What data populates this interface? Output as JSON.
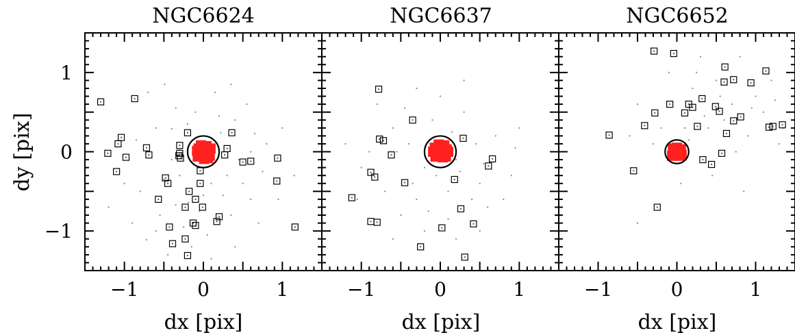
{
  "chart_data": [
    {
      "type": "scatter",
      "title": "NGC6624",
      "xlabel": "dx [pix]",
      "ylabel": "dy [pix]",
      "xlim": [
        -1.5,
        1.5
      ],
      "ylim": [
        -1.5,
        1.5
      ],
      "xticks": [
        "−1",
        "0",
        "1"
      ],
      "yticks": [
        "−1",
        "0",
        "1"
      ],
      "circle_radius": 0.2,
      "selected_points": [
        [
          0.03,
          0.0
        ],
        [
          -0.02,
          0.03
        ],
        [
          0.05,
          -0.04
        ],
        [
          -0.04,
          -0.02
        ],
        [
          0.0,
          0.05
        ],
        [
          0.07,
          0.02
        ],
        [
          -0.06,
          0.04
        ],
        [
          0.02,
          -0.07
        ],
        [
          0.08,
          -0.05
        ],
        [
          -0.07,
          -0.06
        ],
        [
          0.04,
          0.07
        ],
        [
          -0.03,
          0.08
        ],
        [
          0.09,
          0.04
        ],
        [
          -0.08,
          0.01
        ],
        [
          0.01,
          -0.09
        ],
        [
          0.06,
          -0.08
        ]
      ],
      "rejected_points": [
        [
          -1.3,
          0.63
        ],
        [
          -0.87,
          0.67
        ],
        [
          -1.04,
          0.18
        ],
        [
          -1.08,
          0.1
        ],
        [
          -0.98,
          -0.07
        ],
        [
          -1.21,
          -0.02
        ],
        [
          -1.1,
          -0.25
        ],
        [
          -0.72,
          0.05
        ],
        [
          -0.69,
          -0.04
        ],
        [
          -0.48,
          -0.33
        ],
        [
          -0.45,
          -0.4
        ],
        [
          -0.57,
          -0.6
        ],
        [
          -0.3,
          0.08
        ],
        [
          -0.31,
          -0.05
        ],
        [
          -0.29,
          -0.08
        ],
        [
          -0.2,
          0.24
        ],
        [
          -0.3,
          -0.02
        ],
        [
          -0.18,
          -0.5
        ],
        [
          -0.04,
          -0.4
        ],
        [
          -0.04,
          -0.24
        ],
        [
          -0.23,
          -0.7
        ],
        [
          -0.13,
          -0.9
        ],
        [
          -0.1,
          -0.93
        ],
        [
          0.17,
          -0.88
        ],
        [
          0.2,
          -0.82
        ],
        [
          -0.01,
          -0.7
        ],
        [
          -0.1,
          -0.6
        ],
        [
          -0.43,
          -0.95
        ],
        [
          -0.23,
          -1.1
        ],
        [
          -0.39,
          -1.16
        ],
        [
          -0.2,
          -1.31
        ],
        [
          0.3,
          0.04
        ],
        [
          0.27,
          -0.04
        ],
        [
          0.36,
          0.24
        ],
        [
          0.5,
          -0.13
        ],
        [
          0.6,
          -0.12
        ],
        [
          0.94,
          -0.08
        ],
        [
          0.93,
          -0.37
        ],
        [
          1.16,
          -0.95
        ]
      ],
      "noise_points": [
        [
          -0.4,
          0.29
        ],
        [
          0.35,
          0.85
        ],
        [
          0.65,
          0.23
        ],
        [
          -0.49,
          0.85
        ],
        [
          -0.19,
          -0.64
        ],
        [
          0.22,
          0.24
        ],
        [
          -0.72,
          -1.11
        ],
        [
          -0.3,
          0.02
        ],
        [
          0.45,
          -0.1
        ],
        [
          -0.35,
          -0.67
        ],
        [
          0.1,
          -0.4
        ],
        [
          -0.25,
          -0.95
        ],
        [
          0.05,
          -1.05
        ],
        [
          -0.5,
          -0.35
        ],
        [
          0.6,
          -0.6
        ],
        [
          0.3,
          -0.3
        ],
        [
          -0.1,
          0.5
        ],
        [
          0.2,
          0.45
        ],
        [
          -0.6,
          0.3
        ],
        [
          0.8,
          0.1
        ],
        [
          -0.8,
          -0.5
        ],
        [
          0.7,
          -0.9
        ],
        [
          -0.15,
          -1.2
        ],
        [
          0.4,
          -1.2
        ],
        [
          -0.9,
          -0.9
        ],
        [
          1.0,
          0.3
        ],
        [
          -0.35,
          0.55
        ],
        [
          0.55,
          0.6
        ],
        [
          -0.7,
          0.75
        ],
        [
          0.15,
          0.75
        ],
        [
          -1.0,
          -0.4
        ],
        [
          0.95,
          -0.6
        ],
        [
          -0.55,
          -0.8
        ],
        [
          0.25,
          -0.55
        ],
        [
          -0.05,
          -0.75
        ],
        [
          0.5,
          -0.4
        ],
        [
          -0.3,
          -0.3
        ],
        [
          0.35,
          -0.8
        ],
        [
          -0.45,
          -1.3
        ],
        [
          0.1,
          -1.35
        ],
        [
          0.75,
          -0.25
        ],
        [
          -0.85,
          0.15
        ],
        [
          -0.2,
          0.35
        ],
        [
          0.4,
          0.4
        ],
        [
          -1.2,
          -0.7
        ],
        [
          1.15,
          -0.3
        ],
        [
          -0.6,
          -1.0
        ],
        [
          0.6,
          0.0
        ],
        [
          -0.4,
          -0.1
        ],
        [
          0.0,
          -0.55
        ]
      ]
    },
    {
      "type": "scatter",
      "title": "NGC6637",
      "xlabel": "dx [pix]",
      "ylabel": "",
      "xlim": [
        -1.5,
        1.5
      ],
      "ylim": [
        -1.5,
        1.5
      ],
      "xticks": [
        "−1",
        "0",
        "1"
      ],
      "yticks": [],
      "circle_radius": 0.2,
      "selected_points": [
        [
          0.02,
          0.01
        ],
        [
          -0.03,
          0.04
        ],
        [
          0.06,
          -0.03
        ],
        [
          -0.05,
          -0.03
        ],
        [
          0.01,
          0.06
        ],
        [
          0.08,
          0.03
        ],
        [
          -0.07,
          0.05
        ],
        [
          0.03,
          -0.07
        ],
        [
          0.07,
          -0.06
        ],
        [
          -0.06,
          -0.06
        ],
        [
          0.05,
          0.08
        ],
        [
          -0.02,
          0.09
        ],
        [
          0.1,
          0.0
        ],
        [
          -0.09,
          0.0
        ]
      ],
      "rejected_points": [
        [
          -0.78,
          0.79
        ],
        [
          -0.35,
          0.4
        ],
        [
          -0.77,
          0.16
        ],
        [
          -0.72,
          0.14
        ],
        [
          -0.62,
          -0.04
        ],
        [
          -0.88,
          -0.26
        ],
        [
          -0.83,
          -0.32
        ],
        [
          -0.45,
          -0.39
        ],
        [
          -1.12,
          -0.58
        ],
        [
          -0.88,
          -0.88
        ],
        [
          -0.8,
          -0.89
        ],
        [
          -0.25,
          -1.2
        ],
        [
          0.29,
          0.17
        ],
        [
          0.18,
          -0.35
        ],
        [
          0.66,
          -0.09
        ],
        [
          0.61,
          -0.18
        ],
        [
          0.26,
          -0.72
        ],
        [
          0.02,
          -0.96
        ],
        [
          0.42,
          -0.91
        ],
        [
          0.31,
          -1.33
        ]
      ],
      "noise_points": [
        [
          -0.4,
          0.1
        ],
        [
          0.3,
          0.5
        ],
        [
          -0.2,
          -0.2
        ],
        [
          0.5,
          -0.4
        ],
        [
          -0.6,
          0.3
        ],
        [
          0.2,
          -0.1
        ],
        [
          -0.9,
          0.0
        ],
        [
          0.7,
          0.2
        ],
        [
          -0.3,
          -0.6
        ],
        [
          0.1,
          -0.5
        ],
        [
          -0.5,
          -0.8
        ],
        [
          0.4,
          -0.6
        ],
        [
          -0.7,
          -0.5
        ],
        [
          0.6,
          -0.7
        ],
        [
          -0.1,
          0.4
        ],
        [
          0.0,
          0.7
        ],
        [
          -0.45,
          0.55
        ],
        [
          0.45,
          0.1
        ],
        [
          -1.0,
          -0.2
        ],
        [
          0.9,
          -0.3
        ],
        [
          -0.2,
          -1.0
        ],
        [
          0.2,
          -1.1
        ],
        [
          -0.6,
          -1.1
        ],
        [
          0.5,
          -1.0
        ],
        [
          -1.2,
          0.1
        ],
        [
          1.0,
          0.3
        ],
        [
          -0.3,
          0.8
        ],
        [
          0.3,
          0.9
        ],
        [
          -0.8,
          0.6
        ],
        [
          0.8,
          -0.6
        ],
        [
          -0.05,
          -0.3
        ],
        [
          0.15,
          0.25
        ],
        [
          -0.35,
          -0.4
        ],
        [
          0.25,
          -0.25
        ],
        [
          -0.55,
          0.0
        ],
        [
          0.55,
          -0.15
        ],
        [
          -0.15,
          -0.75
        ],
        [
          0.1,
          -0.85
        ],
        [
          -1.05,
          -0.6
        ],
        [
          0.95,
          0.05
        ]
      ]
    },
    {
      "type": "scatter",
      "title": "NGC6652",
      "xlabel": "dx [pix]",
      "ylabel": "",
      "xlim": [
        -1.5,
        1.5
      ],
      "ylim": [
        -1.5,
        1.5
      ],
      "xticks": [
        "−1",
        "0",
        "1"
      ],
      "yticks": [],
      "circle_radius": 0.15,
      "selected_points": [
        [
          0.01,
          0.0
        ],
        [
          -0.03,
          0.03
        ],
        [
          0.04,
          -0.02
        ],
        [
          -0.04,
          -0.03
        ],
        [
          0.0,
          0.05
        ],
        [
          0.05,
          0.03
        ],
        [
          -0.05,
          0.04
        ],
        [
          0.03,
          -0.05
        ],
        [
          0.06,
          -0.04
        ],
        [
          -0.06,
          -0.05
        ]
      ],
      "rejected_points": [
        [
          -0.29,
          1.27
        ],
        [
          -0.04,
          1.24
        ],
        [
          0.61,
          1.07
        ],
        [
          0.6,
          0.88
        ],
        [
          0.72,
          0.91
        ],
        [
          0.94,
          0.87
        ],
        [
          1.13,
          1.02
        ],
        [
          0.32,
          0.67
        ],
        [
          0.49,
          0.57
        ],
        [
          -0.09,
          0.6
        ],
        [
          0.15,
          0.6
        ],
        [
          0.2,
          0.56
        ],
        [
          0.1,
          0.49
        ],
        [
          0.54,
          0.51
        ],
        [
          0.81,
          0.44
        ],
        [
          -0.28,
          0.49
        ],
        [
          -0.41,
          0.33
        ],
        [
          0.26,
          0.32
        ],
        [
          0.63,
          0.23
        ],
        [
          1.17,
          0.31
        ],
        [
          1.22,
          0.32
        ],
        [
          1.34,
          0.34
        ],
        [
          -0.86,
          0.21
        ],
        [
          0.72,
          0.39
        ],
        [
          0.33,
          -0.1
        ],
        [
          0.44,
          -0.16
        ],
        [
          0.57,
          -0.02
        ],
        [
          -0.55,
          -0.24
        ],
        [
          -0.25,
          -0.7
        ]
      ],
      "noise_points": [
        [
          0.2,
          0.8
        ],
        [
          0.4,
          0.3
        ],
        [
          0.7,
          0.6
        ],
        [
          -0.2,
          0.3
        ],
        [
          1.0,
          0.7
        ],
        [
          0.9,
          0.2
        ],
        [
          0.5,
          0.9
        ],
        [
          -0.1,
          1.0
        ],
        [
          0.3,
          1.2
        ],
        [
          0.8,
          1.2
        ],
        [
          1.2,
          0.9
        ],
        [
          -0.5,
          0.6
        ],
        [
          0.1,
          0.3
        ],
        [
          0.6,
          0.4
        ],
        [
          1.1,
          0.5
        ],
        [
          1.3,
          0.1
        ],
        [
          0.75,
          0.0
        ],
        [
          0.35,
          0.45
        ],
        [
          -0.3,
          0.1
        ],
        [
          0.15,
          0.15
        ],
        [
          0.55,
          0.7
        ],
        [
          0.95,
          0.55
        ],
        [
          1.25,
          0.65
        ],
        [
          -0.6,
          0.2
        ],
        [
          0.25,
          1.0
        ],
        [
          0.45,
          -0.3
        ],
        [
          0.05,
          -0.4
        ],
        [
          -0.5,
          -0.9
        ],
        [
          0.85,
          -0.5
        ],
        [
          1.35,
          0.3
        ]
      ]
    }
  ]
}
